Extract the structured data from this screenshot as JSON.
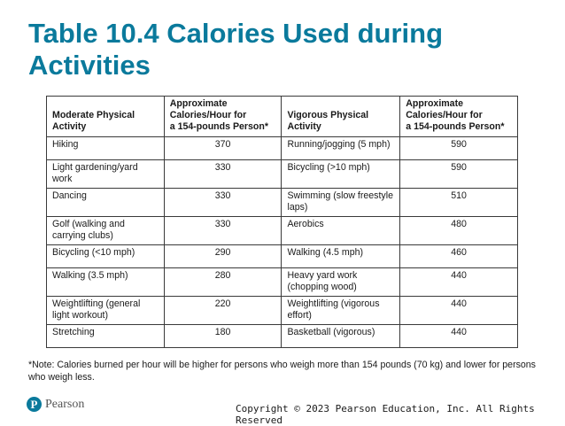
{
  "slide": {
    "title": "Table 10.4 Calories Used during Activities"
  },
  "table": {
    "headers": [
      "Moderate Physical Activity",
      "Approximate Calories/Hour for a 154-pounds Person*",
      "Vigorous Physical Activity",
      "Approximate Calories/Hour for a 154-pounds Person*"
    ],
    "header_lines": [
      [
        "Moderate Physical",
        "Activity"
      ],
      [
        "Approximate",
        "Calories/Hour for",
        "a 154-pounds Person*"
      ],
      [
        "Vigorous Physical",
        "Activity"
      ],
      [
        "Approximate",
        "Calories/Hour for",
        "a 154-pounds Person*"
      ]
    ],
    "rows": [
      {
        "moderate": "Hiking",
        "moderate_cal": "370",
        "vigorous": "Running/jogging (5 mph)",
        "vigorous_cal": "590"
      },
      {
        "moderate": "Light gardening/yard work",
        "moderate_cal": "330",
        "vigorous": "Bicycling (>10 mph)",
        "vigorous_cal": "590"
      },
      {
        "moderate": "Dancing",
        "moderate_cal": "330",
        "vigorous": "Swimming (slow freestyle laps)",
        "vigorous_cal": "510"
      },
      {
        "moderate": "Golf (walking and carrying clubs)",
        "moderate_cal": "330",
        "vigorous": "Aerobics",
        "vigorous_cal": "480"
      },
      {
        "moderate": "Bicycling (<10 mph)",
        "moderate_cal": "290",
        "vigorous": "Walking (4.5 mph)",
        "vigorous_cal": "460"
      },
      {
        "moderate": "Walking (3.5 mph)",
        "moderate_cal": "280",
        "vigorous": "Heavy yard work (chopping wood)",
        "vigorous_cal": "440"
      },
      {
        "moderate": "Weightlifting (general light workout)",
        "moderate_cal": "220",
        "vigorous": "Weightlifting (vigorous effort)",
        "vigorous_cal": "440"
      },
      {
        "moderate": "Stretching",
        "moderate_cal": "180",
        "vigorous": "Basketball (vigorous)",
        "vigorous_cal": "440"
      }
    ]
  },
  "note": "*Note: Calories burned per hour will be higher for persons who weigh more than 154 pounds (70 kg) and lower for persons who weigh less.",
  "footer": {
    "logo_letter": "P",
    "logo_text": "Pearson",
    "copyright": "Copyright © 2023 Pearson Education, Inc. All Rights Reserved"
  },
  "colors": {
    "title": "#0a7a9c",
    "logo": "#0a7a9c"
  }
}
